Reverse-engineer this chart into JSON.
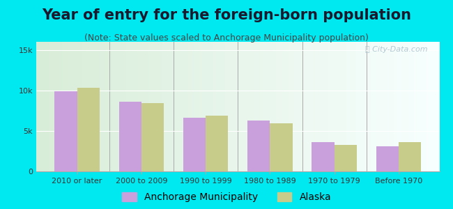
{
  "title": "Year of entry for the foreign-born population",
  "subtitle": "(Note: State values scaled to Anchorage Municipality population)",
  "categories": [
    "2010 or later",
    "2000 to 2009",
    "1990 to 1999",
    "1980 to 1989",
    "1970 to 1979",
    "Before 1970"
  ],
  "anchorage_values": [
    9900,
    8600,
    6600,
    6300,
    3600,
    3100
  ],
  "alaska_values": [
    10300,
    8400,
    6900,
    5900,
    3300,
    3600
  ],
  "anchorage_color": "#c9a0dc",
  "alaska_color": "#c8cc8a",
  "background_outer": "#00e8f0",
  "background_chart_left": "#d8edd8",
  "background_chart_right": "#f8ffff",
  "ylim": [
    0,
    16000
  ],
  "yticks": [
    0,
    5000,
    10000,
    15000
  ],
  "ytick_labels": [
    "0",
    "5k",
    "10k",
    "15k"
  ],
  "bar_width": 0.35,
  "legend_anchorage": "Anchorage Municipality",
  "legend_alaska": "Alaska",
  "title_fontsize": 15,
  "subtitle_fontsize": 9,
  "tick_fontsize": 8,
  "legend_fontsize": 10
}
